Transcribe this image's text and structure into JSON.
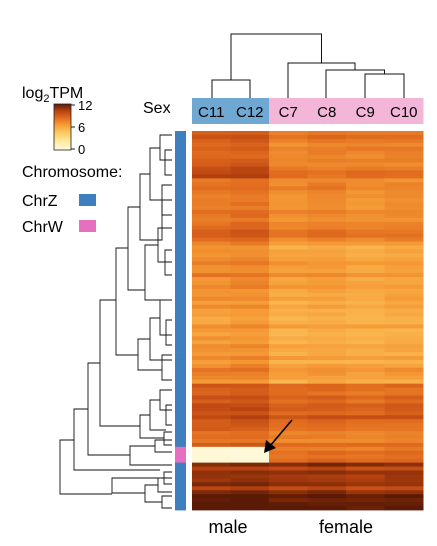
{
  "chart_data": {
    "type": "heatmap",
    "legend": {
      "title_base": "log",
      "title_sub": "2",
      "title_rest": "TPM",
      "ticks": [
        "12",
        "6",
        "0"
      ],
      "range": [
        0,
        12
      ]
    },
    "sex_label": "Sex",
    "columns": [
      "C11",
      "C12",
      "C7",
      "C8",
      "C9",
      "C10"
    ],
    "column_sex": [
      "male",
      "male",
      "female",
      "female",
      "female",
      "female"
    ],
    "sex_colors": {
      "male": "#6fa8d2",
      "female": "#f4b6d8"
    },
    "group_labels": {
      "male": "male",
      "female": "female"
    },
    "chromosome_legend": {
      "title": "Chromosome:",
      "items": [
        {
          "label": "ChrZ",
          "color": "#3f7fbf"
        },
        {
          "label": "ChrW",
          "color": "#e66fc0"
        }
      ]
    },
    "row_blocks": [
      {
        "chrom": "ChrZ",
        "rows": 8,
        "values": [
          8.5,
          8.8,
          7.2,
          7.5,
          7.3,
          7.6
        ]
      },
      {
        "chrom": "ChrZ",
        "rows": 4,
        "values": [
          9.4,
          9.6,
          7.4,
          7.1,
          7.5,
          7.3
        ]
      },
      {
        "chrom": "ChrZ",
        "rows": 16,
        "values": [
          7.8,
          8.1,
          6.9,
          7.2,
          6.8,
          7.0
        ]
      },
      {
        "chrom": "ChrZ",
        "rows": 12,
        "values": [
          6.8,
          7.0,
          5.8,
          6.0,
          5.7,
          5.9
        ]
      },
      {
        "chrom": "ChrZ",
        "rows": 14,
        "values": [
          6.1,
          6.3,
          5.2,
          5.4,
          5.1,
          5.3
        ]
      },
      {
        "chrom": "ChrZ",
        "rows": 10,
        "values": [
          6.6,
          6.8,
          5.6,
          5.8,
          5.5,
          5.7
        ]
      },
      {
        "chrom": "ChrZ",
        "rows": 10,
        "values": [
          9.2,
          9.5,
          8.4,
          8.6,
          8.3,
          8.5
        ]
      },
      {
        "chrom": "ChrZ",
        "rows": 6,
        "values": [
          8.0,
          8.2,
          7.2,
          7.4,
          7.1,
          7.3
        ]
      },
      {
        "chrom": "ChrW",
        "rows": 4,
        "values": [
          0.3,
          0.2,
          7.6,
          7.8,
          7.5,
          7.7
        ]
      },
      {
        "chrom": "ChrZ",
        "rows": 8,
        "values": [
          10.6,
          10.8,
          10.2,
          10.4,
          10.1,
          10.3
        ]
      },
      {
        "chrom": "ChrZ",
        "rows": 4,
        "values": [
          11.6,
          11.7,
          11.3,
          11.5,
          11.2,
          11.4
        ]
      }
    ],
    "annotation": "arrow pointing to ChrW genes with near-zero expression in males",
    "colors": {
      "scale": [
        "#fffbe0",
        "#ffe89a",
        "#fcc35a",
        "#f59a35",
        "#e06a1e",
        "#b8420f",
        "#5a1a05"
      ]
    }
  }
}
